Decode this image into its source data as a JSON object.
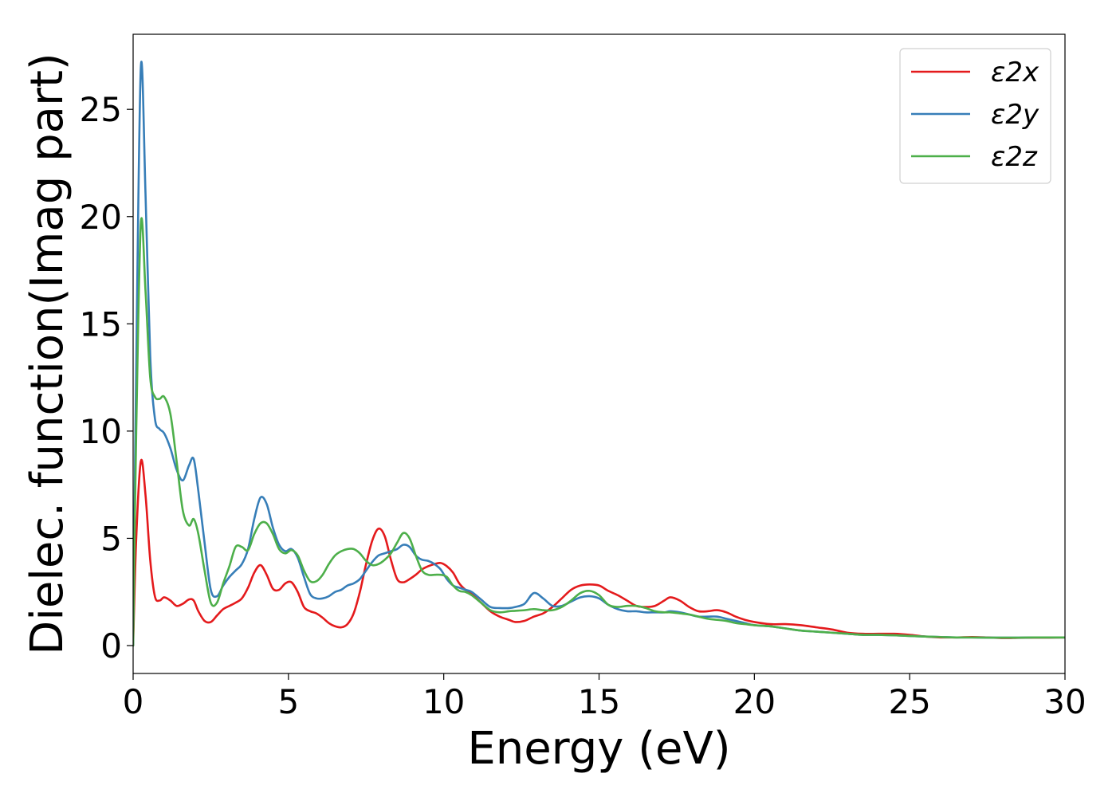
{
  "chart_data": {
    "type": "line",
    "title": "",
    "xlabel": "Energy (eV)",
    "ylabel": "Dielec. function(Imag part)",
    "xlim": [
      0,
      30
    ],
    "ylim": [
      -1.3,
      28.5
    ],
    "xticks": [
      0,
      5,
      10,
      15,
      20,
      25,
      30
    ],
    "yticks": [
      0,
      5,
      10,
      15,
      20,
      25
    ],
    "grid": false,
    "legend_position": "top-right",
    "series": [
      {
        "name": "ε2x",
        "color": "#e41a1c",
        "x": [
          0.0,
          0.1,
          0.25,
          0.4,
          0.55,
          0.7,
          0.85,
          1.0,
          1.2,
          1.4,
          1.6,
          1.8,
          1.95,
          2.1,
          2.3,
          2.5,
          2.7,
          2.9,
          3.1,
          3.3,
          3.5,
          3.7,
          3.9,
          4.1,
          4.3,
          4.5,
          4.7,
          4.9,
          5.1,
          5.3,
          5.5,
          5.7,
          5.9,
          6.1,
          6.3,
          6.5,
          6.7,
          6.9,
          7.1,
          7.3,
          7.5,
          7.7,
          7.9,
          8.1,
          8.3,
          8.5,
          8.7,
          8.9,
          9.1,
          9.3,
          9.5,
          9.7,
          9.9,
          10.1,
          10.3,
          10.5,
          10.7,
          10.9,
          11.2,
          11.5,
          11.8,
          12.1,
          12.3,
          12.6,
          12.9,
          13.2,
          13.5,
          13.8,
          14.1,
          14.4,
          14.7,
          15.0,
          15.3,
          15.6,
          15.9,
          16.2,
          16.5,
          16.8,
          17.1,
          17.3,
          17.6,
          17.9,
          18.2,
          18.5,
          18.8,
          19.1,
          19.4,
          19.7,
          20.0,
          20.5,
          21.0,
          21.5,
          22.0,
          22.5,
          23.0,
          23.5,
          24.0,
          24.5,
          25.0,
          25.5,
          26.0,
          26.5,
          27.0,
          27.5,
          28.0,
          28.5,
          29.0,
          29.5,
          30.0
        ],
        "y": [
          0.0,
          5.0,
          8.6,
          7.0,
          4.0,
          2.3,
          2.1,
          2.25,
          2.1,
          1.85,
          1.95,
          2.15,
          2.1,
          1.6,
          1.15,
          1.1,
          1.4,
          1.7,
          1.85,
          2.0,
          2.2,
          2.7,
          3.4,
          3.75,
          3.3,
          2.65,
          2.6,
          2.9,
          2.95,
          2.5,
          1.8,
          1.6,
          1.5,
          1.3,
          1.05,
          0.9,
          0.85,
          1.0,
          1.5,
          2.5,
          3.8,
          4.9,
          5.45,
          5.1,
          4.0,
          3.1,
          2.95,
          3.1,
          3.3,
          3.55,
          3.7,
          3.8,
          3.85,
          3.7,
          3.4,
          2.9,
          2.6,
          2.4,
          2.0,
          1.6,
          1.35,
          1.2,
          1.1,
          1.15,
          1.35,
          1.5,
          1.8,
          2.2,
          2.6,
          2.8,
          2.85,
          2.8,
          2.55,
          2.35,
          2.1,
          1.85,
          1.8,
          1.85,
          2.1,
          2.25,
          2.1,
          1.8,
          1.6,
          1.6,
          1.65,
          1.55,
          1.35,
          1.2,
          1.1,
          1.0,
          1.0,
          0.95,
          0.85,
          0.75,
          0.6,
          0.55,
          0.55,
          0.55,
          0.5,
          0.42,
          0.38,
          0.38,
          0.4,
          0.38,
          0.35,
          0.36,
          0.37,
          0.37,
          0.38
        ]
      },
      {
        "name": "ε2y",
        "color": "#377eb8",
        "x": [
          0.0,
          0.1,
          0.25,
          0.4,
          0.55,
          0.7,
          0.85,
          1.0,
          1.2,
          1.4,
          1.6,
          1.8,
          1.95,
          2.1,
          2.3,
          2.5,
          2.7,
          2.9,
          3.1,
          3.3,
          3.5,
          3.7,
          3.9,
          4.1,
          4.3,
          4.5,
          4.7,
          4.9,
          5.1,
          5.3,
          5.5,
          5.7,
          5.9,
          6.1,
          6.3,
          6.5,
          6.7,
          6.9,
          7.1,
          7.3,
          7.5,
          7.7,
          7.9,
          8.1,
          8.3,
          8.5,
          8.7,
          8.9,
          9.1,
          9.3,
          9.5,
          9.7,
          9.9,
          10.1,
          10.3,
          10.5,
          10.7,
          10.9,
          11.2,
          11.5,
          11.8,
          12.1,
          12.3,
          12.6,
          12.9,
          13.2,
          13.5,
          13.8,
          14.1,
          14.4,
          14.7,
          15.0,
          15.3,
          15.6,
          15.9,
          16.2,
          16.5,
          16.8,
          17.1,
          17.3,
          17.6,
          17.9,
          18.2,
          18.5,
          18.8,
          19.1,
          19.4,
          19.7,
          20.0,
          20.5,
          21.0,
          21.5,
          22.0,
          22.5,
          23.0,
          23.5,
          24.0,
          24.5,
          25.0,
          25.5,
          26.0,
          26.5,
          27.0,
          27.5,
          28.0,
          28.5,
          29.0,
          29.5,
          30.0
        ],
        "y": [
          0.0,
          13.0,
          27.0,
          21.0,
          13.5,
          10.6,
          10.1,
          9.9,
          9.2,
          8.2,
          7.7,
          8.4,
          8.7,
          7.2,
          4.8,
          2.6,
          2.3,
          2.8,
          3.2,
          3.5,
          3.8,
          4.5,
          5.9,
          6.9,
          6.6,
          5.5,
          4.7,
          4.4,
          4.5,
          4.1,
          3.2,
          2.4,
          2.2,
          2.2,
          2.3,
          2.5,
          2.6,
          2.8,
          2.9,
          3.1,
          3.5,
          3.9,
          4.2,
          4.3,
          4.4,
          4.5,
          4.7,
          4.6,
          4.2,
          4.0,
          3.95,
          3.8,
          3.55,
          3.1,
          2.8,
          2.7,
          2.6,
          2.5,
          2.15,
          1.8,
          1.75,
          1.75,
          1.8,
          1.95,
          2.45,
          2.2,
          1.85,
          1.85,
          2.05,
          2.25,
          2.3,
          2.2,
          1.9,
          1.7,
          1.6,
          1.6,
          1.55,
          1.55,
          1.55,
          1.6,
          1.55,
          1.45,
          1.35,
          1.35,
          1.35,
          1.25,
          1.15,
          1.05,
          0.95,
          0.9,
          0.8,
          0.7,
          0.65,
          0.6,
          0.55,
          0.5,
          0.5,
          0.48,
          0.45,
          0.42,
          0.4,
          0.38,
          0.38,
          0.37,
          0.37,
          0.37,
          0.38,
          0.38,
          0.38
        ]
      },
      {
        "name": "ε2z",
        "color": "#4daf4a",
        "x": [
          0.0,
          0.1,
          0.25,
          0.4,
          0.55,
          0.7,
          0.85,
          1.0,
          1.2,
          1.4,
          1.6,
          1.8,
          1.95,
          2.1,
          2.3,
          2.5,
          2.7,
          2.9,
          3.1,
          3.3,
          3.5,
          3.7,
          3.9,
          4.1,
          4.3,
          4.5,
          4.7,
          4.9,
          5.1,
          5.3,
          5.5,
          5.7,
          5.9,
          6.1,
          6.3,
          6.5,
          6.7,
          6.9,
          7.1,
          7.3,
          7.5,
          7.7,
          7.9,
          8.1,
          8.3,
          8.5,
          8.7,
          8.9,
          9.1,
          9.3,
          9.5,
          9.7,
          9.9,
          10.1,
          10.3,
          10.5,
          10.7,
          10.9,
          11.2,
          11.5,
          11.8,
          12.1,
          12.3,
          12.6,
          12.9,
          13.2,
          13.5,
          13.8,
          14.1,
          14.4,
          14.7,
          15.0,
          15.3,
          15.6,
          15.9,
          16.2,
          16.5,
          16.8,
          17.1,
          17.3,
          17.6,
          17.9,
          18.2,
          18.5,
          18.8,
          19.1,
          19.4,
          19.7,
          20.0,
          20.5,
          21.0,
          21.5,
          22.0,
          22.5,
          23.0,
          23.5,
          24.0,
          24.5,
          25.0,
          25.5,
          26.0,
          26.5,
          27.0,
          27.5,
          28.0,
          28.5,
          29.0,
          29.5,
          30.0
        ],
        "y": [
          0.0,
          10.0,
          19.7,
          16.5,
          12.5,
          11.6,
          11.5,
          11.6,
          10.8,
          8.6,
          6.3,
          5.6,
          5.9,
          5.2,
          3.5,
          2.0,
          2.0,
          2.9,
          3.7,
          4.6,
          4.6,
          4.45,
          5.2,
          5.7,
          5.7,
          5.2,
          4.5,
          4.3,
          4.45,
          4.2,
          3.5,
          3.0,
          3.0,
          3.3,
          3.8,
          4.2,
          4.4,
          4.5,
          4.5,
          4.3,
          3.95,
          3.75,
          3.8,
          4.0,
          4.3,
          4.8,
          5.25,
          5.0,
          4.2,
          3.5,
          3.3,
          3.3,
          3.3,
          3.2,
          2.8,
          2.55,
          2.5,
          2.35,
          2.0,
          1.65,
          1.55,
          1.6,
          1.62,
          1.65,
          1.7,
          1.65,
          1.65,
          1.8,
          2.1,
          2.45,
          2.55,
          2.35,
          1.9,
          1.8,
          1.85,
          1.85,
          1.75,
          1.6,
          1.55,
          1.55,
          1.5,
          1.45,
          1.35,
          1.25,
          1.2,
          1.15,
          1.05,
          1.0,
          0.95,
          0.9,
          0.8,
          0.7,
          0.65,
          0.6,
          0.55,
          0.5,
          0.5,
          0.48,
          0.45,
          0.42,
          0.4,
          0.38,
          0.38,
          0.37,
          0.37,
          0.37,
          0.38,
          0.38,
          0.38
        ]
      }
    ]
  }
}
